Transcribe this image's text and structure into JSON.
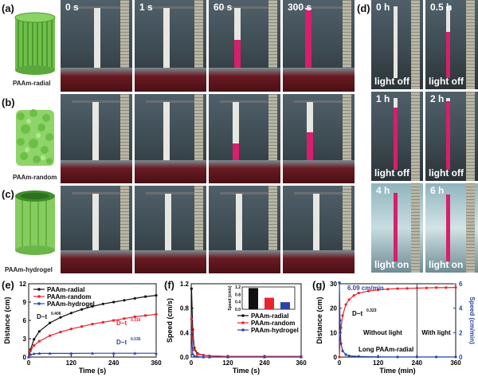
{
  "panels": {
    "a": "(a)",
    "b": "(b)",
    "c": "(c)",
    "d": "(d)",
    "e": "(e)",
    "f": "(f)",
    "g": "(g)"
  },
  "models": {
    "radial": "PAAm-radial",
    "random": "PAAm-random",
    "hydrogel": "PAAm-hydrogel"
  },
  "times": [
    "0 s",
    "1 s",
    "60 s",
    "300 s"
  ],
  "panel_d": [
    {
      "time": "0 h",
      "light": "light off"
    },
    {
      "time": "0.5 h",
      "light": "light off"
    },
    {
      "time": "1 h",
      "light": "light off"
    },
    {
      "time": "2 h",
      "light": "light off"
    },
    {
      "time": "4 h",
      "light": "light on"
    },
    {
      "time": "6 h",
      "light": "light on"
    }
  ],
  "colors": {
    "radial": "#111111",
    "random": "#e8252e",
    "hydrogel": "#2a45a8",
    "pink": "#d81e6c"
  },
  "chart_data": [
    {
      "type": "line",
      "panel": "(e)",
      "xlabel": "Time (s)",
      "ylabel": "Distance (cm)",
      "xlim": [
        0,
        360
      ],
      "ylim": [
        0,
        12
      ],
      "xticks": [
        "0",
        "120",
        "240",
        "360"
      ],
      "yticks": [
        "0",
        "3",
        "6",
        "9",
        "12"
      ],
      "annotations": {
        "radial": "D~t",
        "radial_exp": "0.406",
        "random": "D~t",
        "random_exp": "0.316",
        "hydrogel": "D~t",
        "hydrogel_exp": "0.036"
      },
      "legend_position": "top-left",
      "series": [
        {
          "name": "PAAm-radial",
          "x": [
            0,
            5,
            15,
            30,
            60,
            90,
            120,
            150,
            180,
            210,
            240,
            270,
            300,
            330,
            360
          ],
          "y": [
            0,
            1.2,
            2.9,
            4.2,
            5.6,
            6.5,
            7.2,
            7.8,
            8.3,
            8.7,
            9.0,
            9.3,
            9.6,
            9.9,
            10.1
          ]
        },
        {
          "name": "PAAm-random",
          "x": [
            0,
            5,
            15,
            30,
            60,
            90,
            120,
            150,
            180,
            210,
            240,
            270,
            300,
            330,
            360
          ],
          "y": [
            0,
            1.0,
            1.9,
            2.6,
            3.5,
            4.1,
            4.6,
            5.0,
            5.4,
            5.7,
            6.0,
            6.3,
            6.6,
            6.8,
            7.0
          ]
        },
        {
          "name": "PAAm-hydrogel",
          "x": [
            0,
            5,
            15,
            30,
            60,
            120,
            180,
            240,
            300,
            360
          ],
          "y": [
            0,
            0.4,
            0.55,
            0.6,
            0.6,
            0.6,
            0.62,
            0.62,
            0.62,
            0.62
          ]
        }
      ]
    },
    {
      "type": "line",
      "panel": "(f)",
      "xlabel": "Time (s)",
      "ylabel": "Speed (cm/s)",
      "xlim": [
        0,
        360
      ],
      "ylim": [
        0,
        1.2
      ],
      "xticks": [
        "0",
        "120",
        "240",
        "360"
      ],
      "yticks": [
        "0.0",
        "0.4",
        "0.8",
        "1.2"
      ],
      "legend_position": "center-right",
      "series": [
        {
          "name": "PAAm-radial",
          "x": [
            1,
            5,
            10,
            20,
            40,
            60,
            120,
            240,
            360
          ],
          "y": [
            1.12,
            0.45,
            0.15,
            0.06,
            0.03,
            0.02,
            0.01,
            0.01,
            0.01
          ]
        },
        {
          "name": "PAAm-random",
          "x": [
            1,
            5,
            10,
            20,
            40,
            60,
            120,
            240,
            360
          ],
          "y": [
            0.62,
            0.3,
            0.12,
            0.05,
            0.03,
            0.02,
            0.01,
            0.01,
            0.01
          ]
        },
        {
          "name": "PAAm-hydrogel",
          "x": [
            1,
            5,
            10,
            20,
            40,
            60,
            120,
            240,
            360
          ],
          "y": [
            0.38,
            0.05,
            0.02,
            0.01,
            0.0,
            0.0,
            0.0,
            0.0,
            0.0
          ]
        }
      ],
      "inset": {
        "type": "bar",
        "ylabel": "Speed (cm/s)",
        "ylim": [
          0,
          1.2
        ],
        "yticks": [
          "0.0",
          "0.4",
          "0.8",
          "1.2"
        ],
        "values": [
          1.14,
          0.62,
          0.38
        ],
        "colors": [
          "#111111",
          "#e8252e",
          "#2a45a8"
        ]
      }
    },
    {
      "type": "line",
      "panel": "(g)",
      "xlabel": "Time (min)",
      "ylabel": "Distance (cm)",
      "ylabel2": "Speed (cm/min)",
      "xlim": [
        0,
        360
      ],
      "ylim": [
        0,
        30
      ],
      "ylim2": [
        0,
        6
      ],
      "xticks": [
        "0",
        "120",
        "240",
        "360"
      ],
      "yticks": [
        "0",
        "10",
        "20",
        "30"
      ],
      "yticks2": [
        "0",
        "2",
        "4",
        "6"
      ],
      "annotations": {
        "speed": "6.09 cm/min",
        "law": "D~t",
        "law_exp": "0.323",
        "region1": "Without light",
        "region2": "With light",
        "sample": "Long PAAm-radial"
      },
      "divider_x": 240,
      "series": [
        {
          "name": "distance",
          "x": [
            0,
            2,
            5,
            10,
            20,
            30,
            45,
            60,
            90,
            120,
            150,
            180,
            210,
            240,
            270,
            300,
            330,
            360
          ],
          "y": [
            0,
            6,
            12,
            17,
            21.5,
            23.5,
            25.2,
            26.2,
            27.0,
            27.5,
            27.8,
            28.0,
            28.1,
            28.2,
            28.3,
            28.4,
            28.4,
            28.5
          ]
        },
        {
          "name": "speed",
          "x": [
            0,
            2,
            5,
            10,
            20,
            30,
            60,
            120,
            180,
            240,
            300,
            360
          ],
          "y": [
            6.09,
            3.0,
            1.1,
            0.5,
            0.2,
            0.1,
            0.05,
            0.02,
            0.01,
            0.01,
            0.01,
            0.01
          ]
        }
      ]
    }
  ]
}
